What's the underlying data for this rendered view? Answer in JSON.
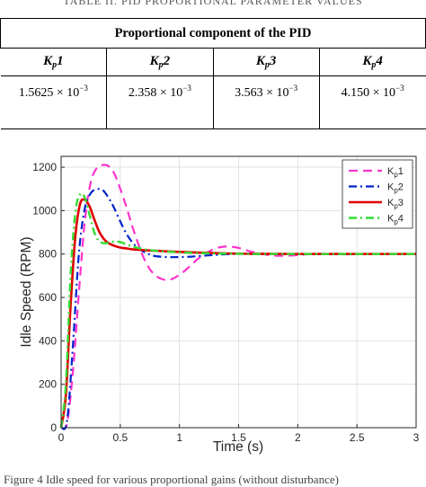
{
  "table": {
    "top_caption": "TABLE II. PID PROPORTIONAL PARAMETER VALUES",
    "header": "Proportional component of the PID",
    "columns": [
      {
        "base": "K",
        "sub": "p",
        "num": "1"
      },
      {
        "base": "K",
        "sub": "p",
        "num": "2"
      },
      {
        "base": "K",
        "sub": "p",
        "num": "3"
      },
      {
        "base": "K",
        "sub": "p",
        "num": "4"
      }
    ],
    "values": [
      {
        "mant": "1.5625",
        "exp": "−3"
      },
      {
        "mant": "2.358",
        "exp": "−3"
      },
      {
        "mant": "3.563",
        "exp": "−3"
      },
      {
        "mant": "4.150",
        "exp": "−3"
      }
    ],
    "times": "× 10"
  },
  "chart_data": {
    "type": "line",
    "title": "",
    "xlabel": "Time (s)",
    "ylabel": "Idle Speed (RPM)",
    "xlim": [
      0,
      3
    ],
    "ylim": [
      0,
      1250
    ],
    "xticks": [
      0,
      0.5,
      1,
      1.5,
      2,
      2.5,
      3
    ],
    "xtick_labels": [
      "0",
      "0.5",
      "1",
      "1.5",
      "2",
      "2.5",
      "3"
    ],
    "yticks": [
      0,
      200,
      400,
      600,
      800,
      1000,
      1200
    ],
    "ytick_labels": [
      "0",
      "200",
      "400",
      "600",
      "800",
      "1000",
      "1200"
    ],
    "grid": true,
    "legend_position": "top-right",
    "series": [
      {
        "name": "K_p1",
        "legend_base": "K",
        "legend_sub": "p",
        "legend_num": "1",
        "color": "#ff33cc",
        "dash": "10,6",
        "width": 2.2,
        "x": [
          0,
          0.05,
          0.1,
          0.15,
          0.2,
          0.25,
          0.3,
          0.35,
          0.4,
          0.45,
          0.5,
          0.55,
          0.6,
          0.65,
          0.7,
          0.75,
          0.8,
          0.85,
          0.9,
          0.95,
          1.0,
          1.05,
          1.1,
          1.15,
          1.2,
          1.25,
          1.3,
          1.35,
          1.4,
          1.45,
          1.5,
          1.55,
          1.6,
          1.7,
          1.8,
          1.9,
          2.0,
          2.1,
          2.2,
          2.4,
          2.6,
          2.8,
          3.0
        ],
        "y": [
          0,
          20,
          260,
          620,
          950,
          1130,
          1195,
          1210,
          1205,
          1170,
          1100,
          1020,
          930,
          850,
          780,
          730,
          700,
          685,
          680,
          688,
          705,
          725,
          750,
          775,
          795,
          812,
          825,
          832,
          835,
          833,
          828,
          820,
          812,
          800,
          793,
          792,
          795,
          800,
          801,
          801,
          800,
          800,
          800
        ]
      },
      {
        "name": "K_p2",
        "legend_base": "K",
        "legend_sub": "p",
        "legend_num": "2",
        "color": "#0022cc",
        "dash": "9,4,2,4",
        "width": 2.2,
        "x": [
          0,
          0.05,
          0.1,
          0.15,
          0.2,
          0.25,
          0.3,
          0.35,
          0.4,
          0.45,
          0.5,
          0.55,
          0.6,
          0.65,
          0.7,
          0.75,
          0.8,
          0.9,
          1.0,
          1.1,
          1.2,
          1.3,
          1.4,
          1.5,
          1.6,
          1.8,
          2.0,
          2.5,
          3.0
        ],
        "y": [
          0,
          30,
          380,
          800,
          1010,
          1080,
          1098,
          1095,
          1060,
          1010,
          950,
          895,
          855,
          828,
          810,
          798,
          790,
          786,
          786,
          788,
          792,
          796,
          799,
          801,
          801,
          800,
          800,
          800,
          800
        ]
      },
      {
        "name": "K_p3",
        "legend_base": "K",
        "legend_sub": "p",
        "legend_num": "3",
        "color": "#e00000",
        "dash": "",
        "width": 2.6,
        "x": [
          0,
          0.04,
          0.08,
          0.12,
          0.16,
          0.2,
          0.24,
          0.28,
          0.32,
          0.36,
          0.4,
          0.45,
          0.5,
          0.55,
          0.6,
          0.7,
          0.8,
          0.9,
          1.0,
          1.2,
          1.4,
          1.6,
          2.0,
          2.5,
          3.0
        ],
        "y": [
          0,
          150,
          560,
          880,
          1030,
          1050,
          1020,
          960,
          905,
          870,
          850,
          838,
          830,
          826,
          822,
          818,
          815,
          812,
          810,
          806,
          803,
          801,
          800,
          800,
          800
        ]
      },
      {
        "name": "K_p4",
        "legend_base": "K",
        "legend_sub": "p",
        "legend_num": "4",
        "color": "#33dd33",
        "dash": "9,4,2,4",
        "width": 2.4,
        "x": [
          0,
          0.04,
          0.08,
          0.12,
          0.16,
          0.2,
          0.24,
          0.28,
          0.32,
          0.36,
          0.4,
          0.45,
          0.5,
          0.55,
          0.6,
          0.7,
          0.8,
          1.0,
          1.2,
          1.5,
          2.0,
          2.5,
          3.0
        ],
        "y": [
          0,
          200,
          700,
          990,
          1075,
          1060,
          980,
          900,
          860,
          850,
          852,
          858,
          855,
          845,
          835,
          822,
          815,
          808,
          804,
          801,
          800,
          800,
          800
        ]
      }
    ]
  },
  "bottom_caption": "Figure 4 Idle speed for various proportional gains (without disturbance)"
}
